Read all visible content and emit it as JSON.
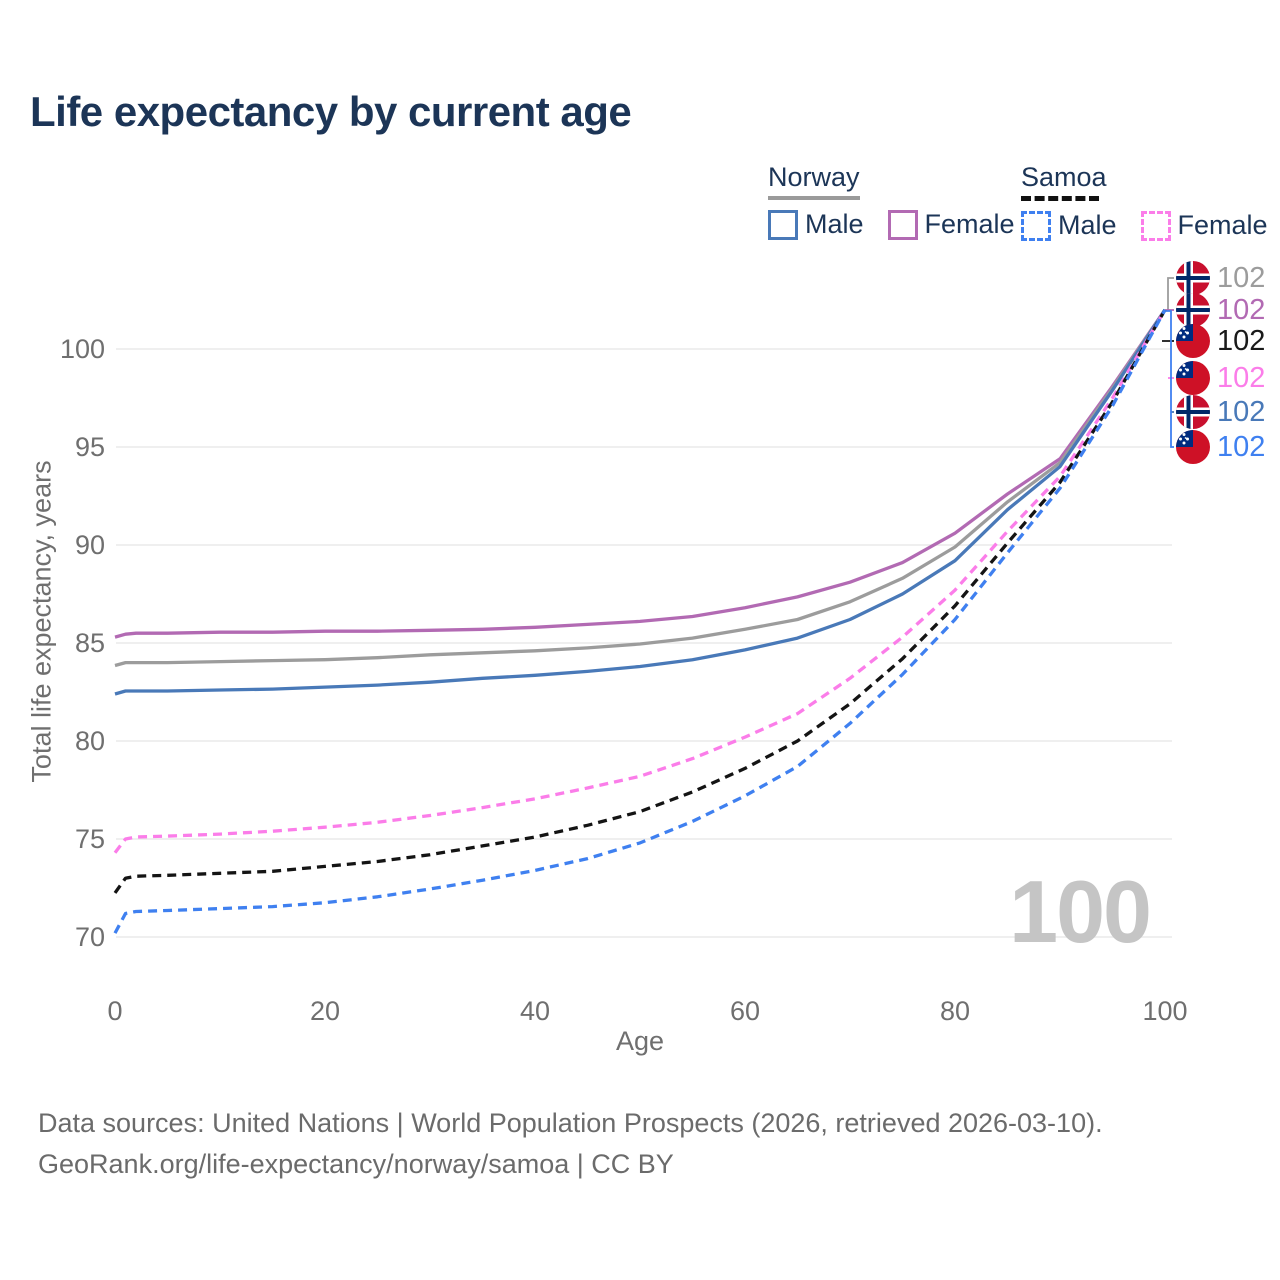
{
  "title": "Life expectancy by current age",
  "legend": {
    "groups": [
      {
        "country": "Norway",
        "style": "solid",
        "rule_color": "#9a9a9a",
        "items": [
          {
            "label": "Male",
            "color": "#4979b8"
          },
          {
            "label": "Female",
            "color": "#b26ab3"
          }
        ]
      },
      {
        "country": "Samoa",
        "style": "dashed",
        "rule_color": "#111111",
        "items": [
          {
            "label": "Male",
            "color": "#3f80f0"
          },
          {
            "label": "Female",
            "color": "#fb7de9"
          }
        ]
      }
    ]
  },
  "axis": {
    "y_title": "Total life expectancy, years",
    "x_title": "Age"
  },
  "watermark": "100",
  "end_labels": [
    {
      "flag": "norway",
      "value": "102",
      "color": "#9c9c9c"
    },
    {
      "flag": "norway",
      "value": "102",
      "color": "#b26ab3"
    },
    {
      "flag": "samoa",
      "value": "102",
      "color": "#1a1a1a"
    },
    {
      "flag": "samoa",
      "value": "102",
      "color": "#fb7de9"
    },
    {
      "flag": "norway",
      "value": "102",
      "color": "#4979b8"
    },
    {
      "flag": "samoa",
      "value": "102",
      "color": "#3f80f0"
    }
  ],
  "footer": {
    "line1": "Data sources: United Nations | World Population Prospects (2026, retrieved 2026-03-10).",
    "line2": "GeoRank.org/life-expectancy/norway/samoa | CC BY"
  },
  "chart_data": {
    "type": "line",
    "title": "Life expectancy by current age",
    "xlabel": "Age",
    "ylabel": "Total life expectancy, years",
    "xlim": [
      0,
      100
    ],
    "ylim": [
      68.5,
      103
    ],
    "xticks": [
      0,
      20,
      40,
      60,
      80,
      100
    ],
    "yticks": [
      70,
      75,
      80,
      85,
      90,
      95,
      100
    ],
    "grid": "horizontal",
    "legend_position": "top-right",
    "x": [
      0,
      1,
      2,
      5,
      10,
      15,
      20,
      25,
      30,
      35,
      40,
      45,
      50,
      55,
      60,
      65,
      70,
      75,
      80,
      85,
      90,
      95,
      100
    ],
    "series": [
      {
        "name": "Norway Female",
        "country": "Norway",
        "sex": "Female",
        "style": "solid",
        "color": "#b26ab3",
        "values": [
          85.3,
          85.45,
          85.5,
          85.5,
          85.55,
          85.55,
          85.6,
          85.6,
          85.65,
          85.7,
          85.8,
          85.95,
          86.1,
          86.35,
          86.8,
          87.35,
          88.1,
          89.1,
          90.6,
          92.6,
          94.4,
          98.1,
          102
        ]
      },
      {
        "name": "Norway Total",
        "country": "Norway",
        "sex": "Total",
        "style": "solid",
        "color": "#9c9c9c",
        "values": [
          83.85,
          84.0,
          84.0,
          84.0,
          84.05,
          84.1,
          84.15,
          84.25,
          84.4,
          84.5,
          84.6,
          84.75,
          84.95,
          85.25,
          85.7,
          86.2,
          87.1,
          88.3,
          89.9,
          92.2,
          94.2,
          98.0,
          102
        ]
      },
      {
        "name": "Norway Male",
        "country": "Norway",
        "sex": "Male",
        "style": "solid",
        "color": "#4979b8",
        "values": [
          82.4,
          82.55,
          82.55,
          82.55,
          82.6,
          82.65,
          82.75,
          82.85,
          83.0,
          83.2,
          83.35,
          83.55,
          83.8,
          84.15,
          84.65,
          85.25,
          86.2,
          87.5,
          89.2,
          91.8,
          94.0,
          97.9,
          102
        ]
      },
      {
        "name": "Samoa Female",
        "country": "Samoa",
        "sex": "Female",
        "style": "dashed",
        "color": "#fb7de9",
        "values": [
          74.3,
          75.0,
          75.1,
          75.15,
          75.25,
          75.4,
          75.6,
          75.85,
          76.2,
          76.6,
          77.05,
          77.6,
          78.2,
          79.1,
          80.2,
          81.4,
          83.2,
          85.3,
          87.7,
          90.7,
          93.5,
          97.5,
          102
        ]
      },
      {
        "name": "Samoa Total",
        "country": "Samoa",
        "sex": "Total",
        "style": "dashed",
        "color": "#141414",
        "values": [
          72.25,
          73.0,
          73.1,
          73.15,
          73.25,
          73.35,
          73.6,
          73.85,
          74.2,
          74.65,
          75.1,
          75.7,
          76.4,
          77.4,
          78.6,
          80.0,
          81.9,
          84.2,
          86.9,
          90.1,
          93.2,
          97.3,
          102
        ]
      },
      {
        "name": "Samoa Male",
        "country": "Samoa",
        "sex": "Male",
        "style": "dashed",
        "color": "#3f80f0",
        "values": [
          70.2,
          71.2,
          71.3,
          71.35,
          71.45,
          71.55,
          71.75,
          72.05,
          72.45,
          72.9,
          73.4,
          74.0,
          74.8,
          75.9,
          77.2,
          78.7,
          80.9,
          83.4,
          86.2,
          89.6,
          92.9,
          97.1,
          102
        ]
      }
    ],
    "end_value_labels": [
      102,
      102,
      102,
      102,
      102,
      102
    ]
  }
}
